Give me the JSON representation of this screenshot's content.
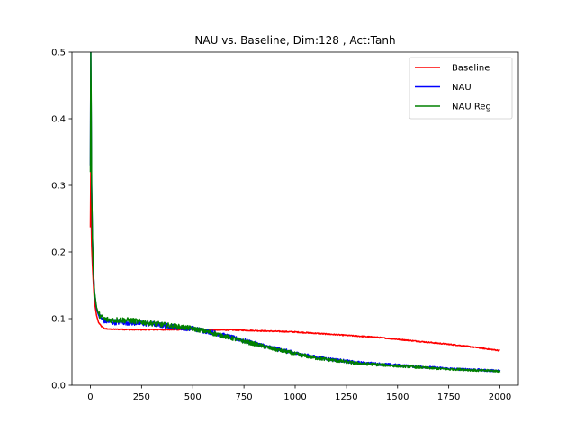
{
  "chart_data": {
    "type": "line",
    "title": "NAU vs. Baseline, Dim:128 , Act:Tanh",
    "xlabel": "",
    "ylabel": "",
    "xlim": [
      -90,
      2090
    ],
    "ylim": [
      0,
      0.5
    ],
    "xticks": [
      0,
      250,
      500,
      750,
      1000,
      1250,
      1500,
      1750,
      2000
    ],
    "yticks": [
      0.0,
      0.1,
      0.2,
      0.3,
      0.4,
      0.5
    ],
    "xtick_labels": [
      "0",
      "250",
      "500",
      "750",
      "1000",
      "1250",
      "1500",
      "1750",
      "2000"
    ],
    "ytick_labels": [
      "0.0",
      "0.1",
      "0.2",
      "0.3",
      "0.4",
      "0.5"
    ],
    "grid": false,
    "legend_position": "top-right",
    "series": [
      {
        "name": "Baseline",
        "color": "#ff0000",
        "x": [
          0,
          2,
          4,
          6,
          10,
          15,
          20,
          30,
          40,
          55,
          70,
          100,
          150,
          200,
          300,
          400,
          500,
          600,
          700,
          800,
          900,
          1000,
          1100,
          1200,
          1300,
          1400,
          1500,
          1600,
          1700,
          1800,
          1900,
          2000
        ],
        "y": [
          0.237,
          0.32,
          0.25,
          0.21,
          0.18,
          0.15,
          0.125,
          0.105,
          0.094,
          0.088,
          0.085,
          0.084,
          0.084,
          0.0835,
          0.0835,
          0.0835,
          0.0835,
          0.083,
          0.083,
          0.082,
          0.081,
          0.08,
          0.078,
          0.076,
          0.074,
          0.072,
          0.069,
          0.066,
          0.063,
          0.06,
          0.056,
          0.052
        ]
      },
      {
        "name": "NAU",
        "color": "#0000ff",
        "x": [
          0,
          2,
          4,
          6,
          10,
          15,
          20,
          30,
          40,
          55,
          70,
          100,
          150,
          200,
          250,
          300,
          350,
          400,
          450,
          500,
          550,
          600,
          650,
          700,
          750,
          800,
          850,
          900,
          950,
          1000,
          1050,
          1100,
          1150,
          1200,
          1250,
          1300,
          1350,
          1400,
          1450,
          1500,
          1550,
          1600,
          1650,
          1700,
          1750,
          1800,
          1850,
          1900,
          1950,
          2000
        ],
        "y": [
          0.33,
          0.5,
          0.4,
          0.3,
          0.22,
          0.17,
          0.14,
          0.115,
          0.105,
          0.1,
          0.097,
          0.095,
          0.095,
          0.094,
          0.093,
          0.092,
          0.09,
          0.088,
          0.086,
          0.085,
          0.082,
          0.079,
          0.075,
          0.071,
          0.067,
          0.063,
          0.059,
          0.055,
          0.052,
          0.048,
          0.045,
          0.042,
          0.04,
          0.038,
          0.036,
          0.034,
          0.033,
          0.032,
          0.031,
          0.03,
          0.029,
          0.028,
          0.027,
          0.026,
          0.025,
          0.024,
          0.024,
          0.023,
          0.022,
          0.022
        ]
      },
      {
        "name": "NAU Reg",
        "color": "#008000",
        "x": [
          0,
          2,
          4,
          6,
          10,
          15,
          20,
          30,
          40,
          55,
          70,
          100,
          150,
          200,
          250,
          300,
          350,
          400,
          450,
          500,
          550,
          600,
          650,
          700,
          750,
          800,
          850,
          900,
          950,
          1000,
          1050,
          1100,
          1150,
          1200,
          1250,
          1300,
          1350,
          1400,
          1450,
          1500,
          1550,
          1600,
          1650,
          1700,
          1750,
          1800,
          1850,
          1900,
          1950,
          2000
        ],
        "y": [
          0.32,
          0.5,
          0.42,
          0.3,
          0.22,
          0.17,
          0.14,
          0.117,
          0.107,
          0.102,
          0.099,
          0.098,
          0.098,
          0.097,
          0.095,
          0.093,
          0.091,
          0.089,
          0.087,
          0.085,
          0.082,
          0.078,
          0.074,
          0.07,
          0.066,
          0.062,
          0.058,
          0.054,
          0.051,
          0.047,
          0.044,
          0.041,
          0.039,
          0.037,
          0.035,
          0.033,
          0.032,
          0.031,
          0.03,
          0.029,
          0.028,
          0.027,
          0.026,
          0.025,
          0.024,
          0.024,
          0.023,
          0.022,
          0.022,
          0.021
        ]
      }
    ]
  }
}
